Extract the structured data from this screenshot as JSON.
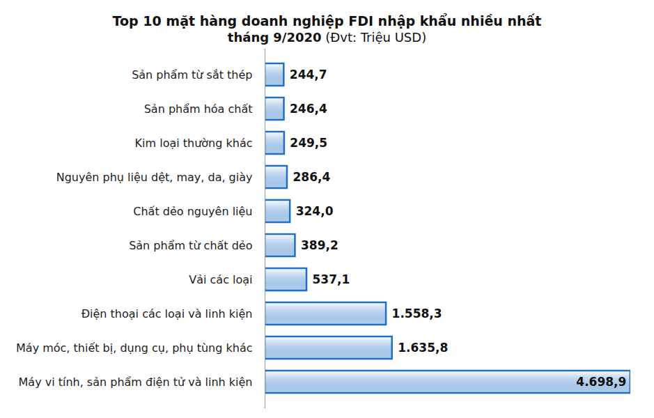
{
  "chart_data": {
    "type": "bar",
    "orientation": "horizontal",
    "title": "Top 10 mặt hàng doanh nghiệp FDI nhập khẩu nhiều nhất",
    "subtitle": "tháng 9/2020",
    "annotations": [
      "(Đvt: Triệu USD)"
    ],
    "categories": [
      "Sản phẩm từ sắt thép",
      "Sản phẩm hóa chất",
      "Kim loại thường khác",
      "Nguyên phụ liệu dệt, may, da, giày",
      "Chất dẻo nguyên liệu",
      "Sản phẩm từ chất dẻo",
      "Vải các loại",
      "Điện thoại các loại và linh kiện",
      "Máy móc, thiết bị, dụng cụ, phụ tùng khác",
      "Máy vi tính, sản phẩm điện tử và linh kiện"
    ],
    "values": [
      244.7,
      246.4,
      249.5,
      286.4,
      324.0,
      389.2,
      537.1,
      1558.3,
      1635.8,
      4698.9
    ],
    "value_labels": [
      "244,7",
      "246,4",
      "249,5",
      "286,4",
      "324,0",
      "389,2",
      "537,1",
      "1.558,3",
      "1.635,8",
      "4.698,9"
    ],
    "color": "#1f6fc5",
    "xlim": [
      0,
      4700
    ],
    "xticks": [],
    "data_labels": true,
    "tick_labels": "y",
    "grid": false
  }
}
